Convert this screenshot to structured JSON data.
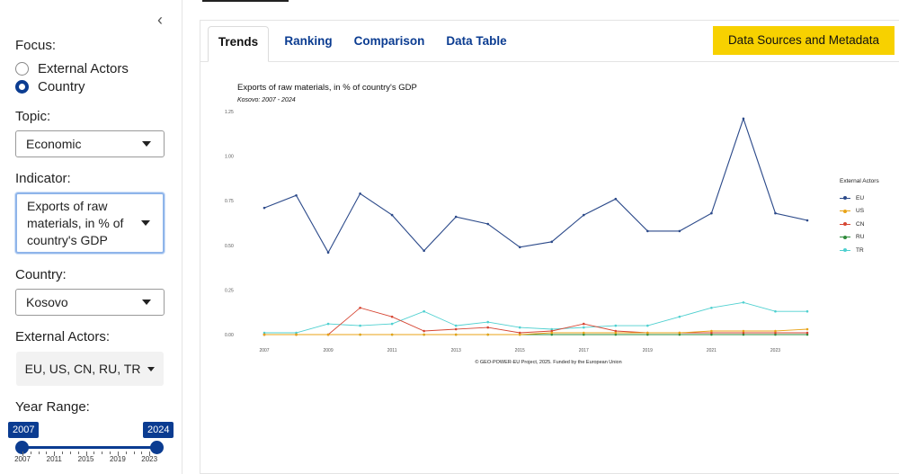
{
  "sidebar": {
    "focus_label": "Focus:",
    "focus_options": [
      {
        "label": "External Actors",
        "checked": false
      },
      {
        "label": "Country",
        "checked": true
      }
    ],
    "topic_label": "Topic:",
    "topic_value": "Economic",
    "indicator_label": "Indicator:",
    "indicator_value": "Exports of raw materials, in % of country's GDP",
    "country_label": "Country:",
    "country_value": "Kosovo",
    "actors_label": "External Actors:",
    "actors_value": "EU, US, CN, RU, TR",
    "year_range_label": "Year Range:",
    "year_start": "2007",
    "year_end": "2024",
    "slider_ticks": [
      "2007",
      "2011",
      "2015",
      "2019",
      "2023"
    ]
  },
  "tabs": [
    {
      "label": "Trends",
      "active": true
    },
    {
      "label": "Ranking",
      "active": false
    },
    {
      "label": "Comparison",
      "active": false
    },
    {
      "label": "Data Table",
      "active": false
    }
  ],
  "data_sources_button": "Data Sources and Metadata",
  "colors": {
    "accent": "#0b3c91",
    "button_yellow": "#f7d100",
    "EU": "#2c4a8a",
    "US": "#e8a317",
    "CN": "#d64532",
    "RU": "#2e8b3a",
    "TR": "#4fd0d0"
  },
  "chart_data": {
    "type": "line",
    "title": "Exports of raw materials, in % of country's GDP",
    "subtitle": "Kosovo: 2007 - 2024",
    "footer": "© GEO-POWER-EU Project, 2025. Funded by the European Union",
    "x": [
      2007,
      2008,
      2009,
      2010,
      2011,
      2012,
      2013,
      2014,
      2015,
      2016,
      2017,
      2018,
      2019,
      2020,
      2021,
      2022,
      2023,
      2024
    ],
    "x_ticks": [
      2007,
      2009,
      2011,
      2013,
      2015,
      2017,
      2019,
      2021,
      2023
    ],
    "y_ticks": [
      0.0,
      0.25,
      0.5,
      0.75,
      1.0,
      1.25
    ],
    "y_tick_labels": [
      "0.00",
      "0.25",
      "0.50",
      "0.75",
      "1.00",
      "1.25"
    ],
    "ylim": [
      0,
      1.25
    ],
    "legend_title": "External Actors",
    "legend_position": "right",
    "series": [
      {
        "name": "EU",
        "values": [
          0.71,
          0.78,
          0.46,
          0.79,
          0.67,
          0.47,
          0.66,
          0.62,
          0.49,
          0.52,
          0.67,
          0.76,
          0.58,
          0.58,
          0.68,
          1.21,
          0.68,
          0.64
        ]
      },
      {
        "name": "US",
        "values": [
          0.0,
          0.0,
          0.0,
          0.0,
          0.0,
          0.0,
          0.0,
          0.0,
          0.0,
          0.01,
          0.01,
          0.01,
          0.01,
          0.01,
          0.02,
          0.02,
          0.02,
          0.03
        ]
      },
      {
        "name": "CN",
        "values": [
          0.0,
          0.0,
          0.0,
          0.15,
          0.1,
          0.02,
          0.03,
          0.04,
          0.01,
          0.02,
          0.06,
          0.02,
          0.01,
          0.01,
          0.01,
          0.01,
          0.01,
          0.01
        ]
      },
      {
        "name": "RU",
        "values": [
          0.0,
          0.0,
          0.0,
          0.0,
          0.0,
          0.0,
          0.0,
          0.0,
          0.0,
          0.0,
          0.0,
          0.0,
          0.0,
          0.0,
          0.0,
          0.0,
          0.0,
          0.0
        ]
      },
      {
        "name": "TR",
        "values": [
          0.01,
          0.01,
          0.06,
          0.05,
          0.06,
          0.13,
          0.05,
          0.07,
          0.04,
          0.03,
          0.04,
          0.05,
          0.05,
          0.1,
          0.15,
          0.18,
          0.13,
          0.13
        ]
      }
    ]
  }
}
